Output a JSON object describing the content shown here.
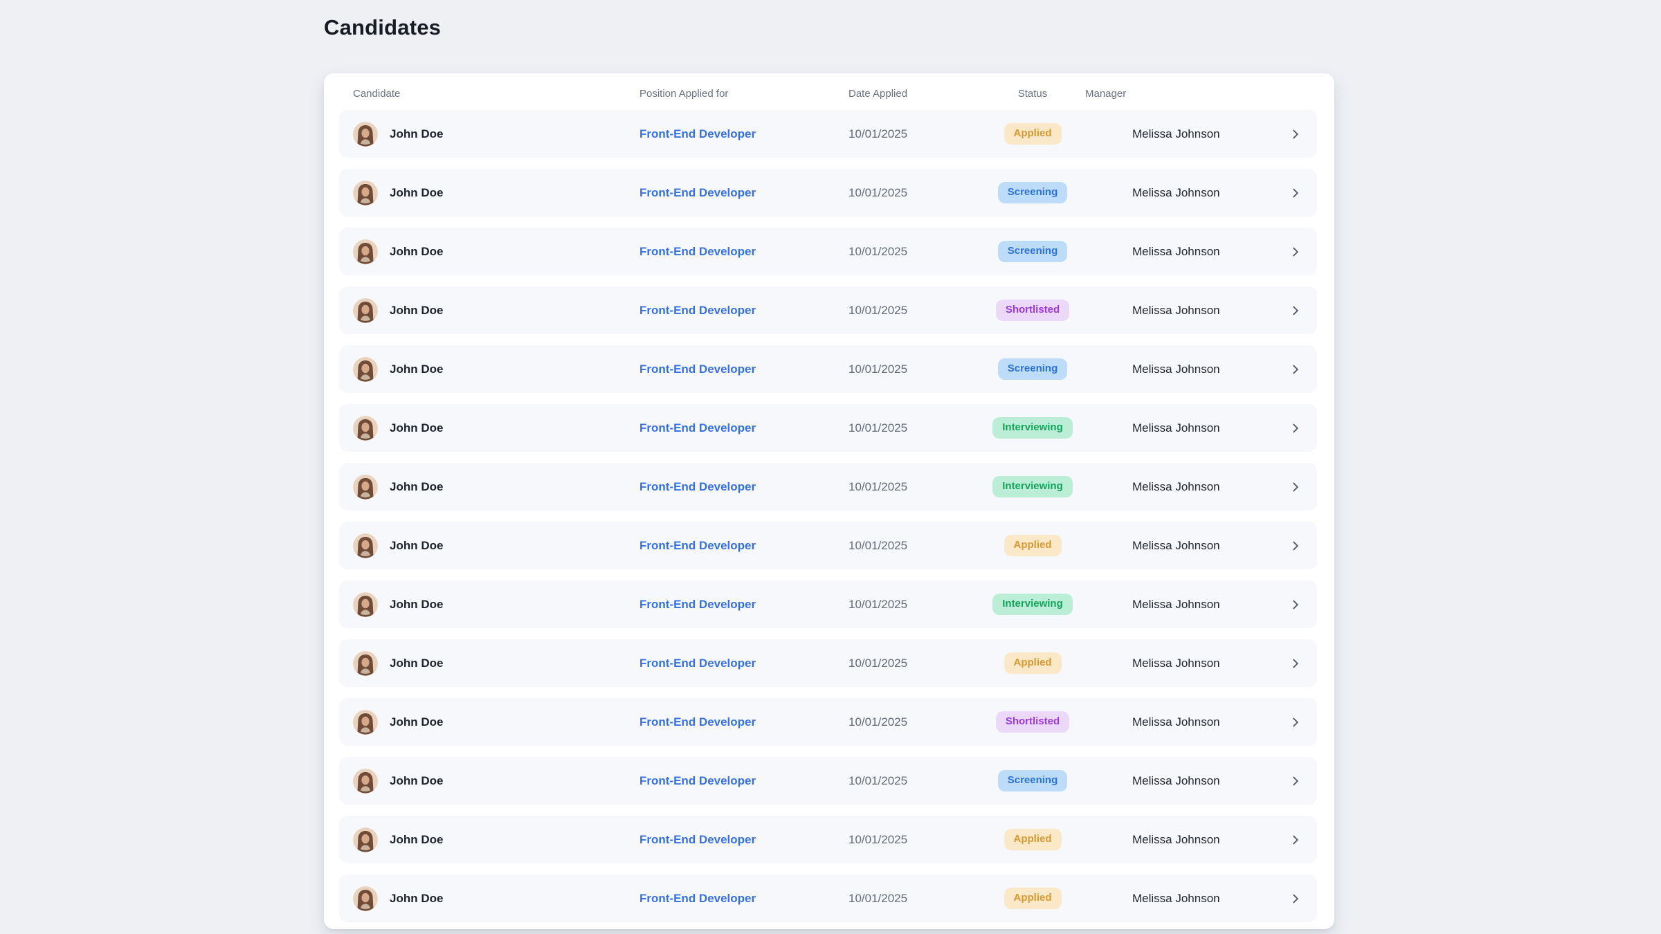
{
  "page": {
    "title": "Candidates"
  },
  "colors": {
    "page_bg": "#eef0f4",
    "card_bg": "#ffffff",
    "row_bg": "#f7f8fb",
    "header_text": "#6a7180",
    "name_text": "#1d222a",
    "date_text": "#646b78",
    "manager_text": "#23272f",
    "link": "#3471e6",
    "chevron": "#4a5565"
  },
  "icons": {
    "avatar": "person-photo-avatar",
    "row_chevron": "chevron-right"
  },
  "table": {
    "columns": [
      {
        "key": "candidate",
        "label": "Candidate"
      },
      {
        "key": "position",
        "label": "Position Applied for"
      },
      {
        "key": "date",
        "label": "Date Applied"
      },
      {
        "key": "status",
        "label": "Status"
      },
      {
        "key": "manager",
        "label": "Manager"
      }
    ],
    "status_styles": {
      "Applied": {
        "bg": "#fbe8c8",
        "text": "#d9992f"
      },
      "Screening": {
        "bg": "#bcdcfa",
        "text": "#2b72dd"
      },
      "Shortlisted": {
        "bg": "#ecd9f9",
        "text": "#9a39e0"
      },
      "Interviewing": {
        "bg": "#bceed7",
        "text": "#10a45c"
      }
    },
    "rows": [
      {
        "candidate": "John Doe",
        "position": "Front-End Developer",
        "date": "10/01/2025",
        "status": "Applied",
        "manager": "Melissa Johnson"
      },
      {
        "candidate": "John Doe",
        "position": "Front-End Developer",
        "date": "10/01/2025",
        "status": "Screening",
        "manager": "Melissa Johnson"
      },
      {
        "candidate": "John Doe",
        "position": "Front-End Developer",
        "date": "10/01/2025",
        "status": "Screening",
        "manager": "Melissa Johnson"
      },
      {
        "candidate": "John Doe",
        "position": "Front-End Developer",
        "date": "10/01/2025",
        "status": "Shortlisted",
        "manager": "Melissa Johnson"
      },
      {
        "candidate": "John Doe",
        "position": "Front-End Developer",
        "date": "10/01/2025",
        "status": "Screening",
        "manager": "Melissa Johnson"
      },
      {
        "candidate": "John Doe",
        "position": "Front-End Developer",
        "date": "10/01/2025",
        "status": "Interviewing",
        "manager": "Melissa Johnson"
      },
      {
        "candidate": "John Doe",
        "position": "Front-End Developer",
        "date": "10/01/2025",
        "status": "Interviewing",
        "manager": "Melissa Johnson"
      },
      {
        "candidate": "John Doe",
        "position": "Front-End Developer",
        "date": "10/01/2025",
        "status": "Applied",
        "manager": "Melissa Johnson"
      },
      {
        "candidate": "John Doe",
        "position": "Front-End Developer",
        "date": "10/01/2025",
        "status": "Interviewing",
        "manager": "Melissa Johnson"
      },
      {
        "candidate": "John Doe",
        "position": "Front-End Developer",
        "date": "10/01/2025",
        "status": "Applied",
        "manager": "Melissa Johnson"
      },
      {
        "candidate": "John Doe",
        "position": "Front-End Developer",
        "date": "10/01/2025",
        "status": "Shortlisted",
        "manager": "Melissa Johnson"
      },
      {
        "candidate": "John Doe",
        "position": "Front-End Developer",
        "date": "10/01/2025",
        "status": "Screening",
        "manager": "Melissa Johnson"
      },
      {
        "candidate": "John Doe",
        "position": "Front-End Developer",
        "date": "10/01/2025",
        "status": "Applied",
        "manager": "Melissa Johnson"
      },
      {
        "candidate": "John Doe",
        "position": "Front-End Developer",
        "date": "10/01/2025",
        "status": "Applied",
        "manager": "Melissa Johnson"
      }
    ]
  }
}
